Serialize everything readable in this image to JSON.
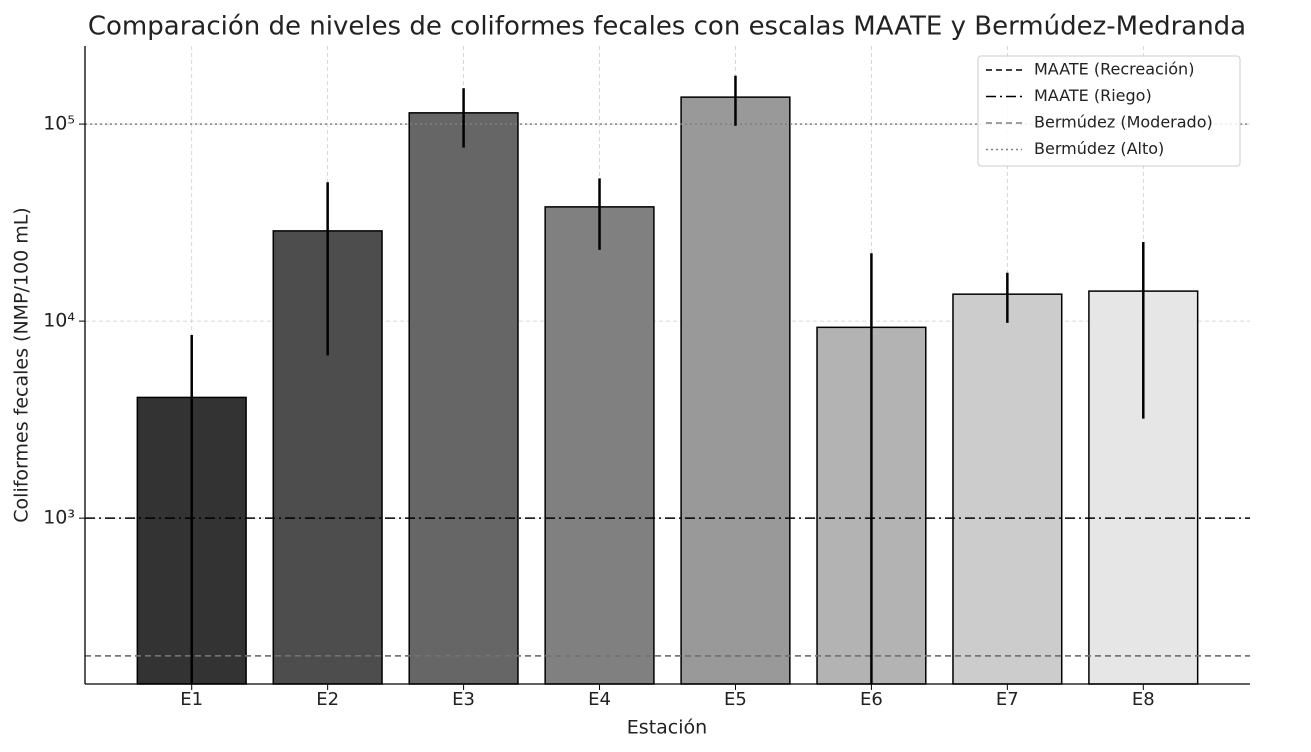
{
  "chart_data": {
    "type": "bar",
    "title": "Comparación de niveles de coliformes fecales con escalas MAATE y Bermúdez-Medranda",
    "xlabel": "Estación",
    "ylabel": "Coliformes fecales (NMP/100 mL)",
    "categories": [
      "E1",
      "E2",
      "E3",
      "E4",
      "E5",
      "E6",
      "E7",
      "E8"
    ],
    "values": [
      4100,
      28700,
      114000,
      38000,
      137000,
      9300,
      13700,
      14200
    ],
    "errors": [
      4400,
      22000,
      38000,
      15000,
      39000,
      12800,
      3900,
      11000
    ],
    "colors": [
      "#333333",
      "#4d4d4d",
      "#666666",
      "#808080",
      "#999999",
      "#b3b3b3",
      "#cccccc",
      "#e6e6e6"
    ],
    "yscale": "log",
    "ylim": [
      144,
      249000
    ],
    "yticks": [
      {
        "value": 1000,
        "label": "10³"
      },
      {
        "value": 10000,
        "label": "10⁴"
      },
      {
        "value": 100000,
        "label": "10⁵"
      }
    ],
    "grid": true,
    "legend_position": "upper right",
    "reference_lines": [
      {
        "name": "MAATE (Recreación)",
        "value": 200,
        "color": "#000000",
        "dash": "dashed"
      },
      {
        "name": "MAATE (Riego)",
        "value": 1000,
        "color": "#000000",
        "dash": "dashdot"
      },
      {
        "name": "Bermúdez (Moderado)",
        "value": 200,
        "color": "#808080",
        "dash": "dashed"
      },
      {
        "name": "Bermúdez (Alto)",
        "value": 100000,
        "color": "#808080",
        "dash": "dotted"
      }
    ]
  }
}
